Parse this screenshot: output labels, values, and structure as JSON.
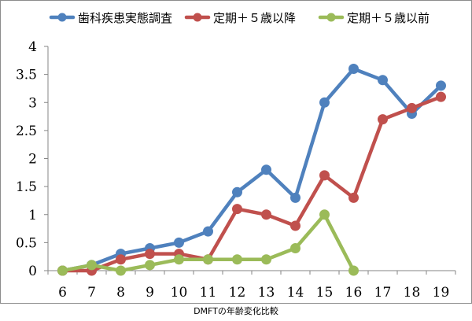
{
  "caption": "DMFTの年齢変化比較",
  "chart_data": {
    "type": "line",
    "title": "",
    "xlabel": "",
    "ylabel": "",
    "categories": [
      "6",
      "7",
      "8",
      "9",
      "10",
      "11",
      "12",
      "13",
      "14",
      "15",
      "16",
      "17",
      "18",
      "19"
    ],
    "ylim": [
      0,
      4
    ],
    "yticks": [
      "0",
      "0.5",
      "1",
      "1.5",
      "2",
      "2.5",
      "3",
      "3.5",
      "4"
    ],
    "grid": false,
    "legend_position": "top",
    "series": [
      {
        "name": "歯科疾患実態調査",
        "color": "#4f81bd",
        "values": [
          0,
          0.1,
          0.3,
          0.4,
          0.5,
          0.7,
          1.4,
          1.8,
          1.3,
          3.0,
          3.6,
          3.4,
          2.8,
          3.3
        ]
      },
      {
        "name": "定期＋５歳以降",
        "color": "#c0504d",
        "values": [
          0,
          0,
          0.2,
          0.3,
          0.3,
          0.2,
          1.1,
          1.0,
          0.8,
          1.7,
          1.3,
          2.7,
          2.9,
          3.1
        ]
      },
      {
        "name": "定期＋５歳以前",
        "color": "#9bbb59",
        "values": [
          0,
          0.1,
          0,
          0.1,
          0.2,
          0.2,
          0.2,
          0.2,
          0.4,
          1.0,
          0,
          null,
          null,
          null
        ]
      }
    ]
  }
}
